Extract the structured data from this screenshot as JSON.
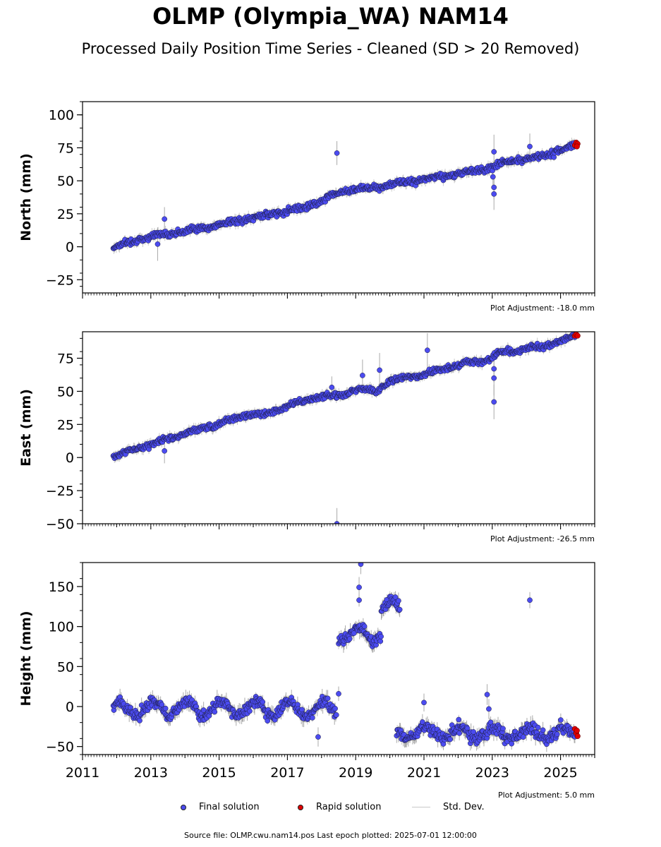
{
  "header": {
    "title": "OLMP (Olympia_WA) NAM14",
    "subtitle": "Processed Daily Position Time Series - Cleaned (SD > 20 Removed)"
  },
  "legend": {
    "final_label": "Final solution",
    "rapid_label": "Rapid solution",
    "std_label": "Std. Dev."
  },
  "footer": {
    "text": "Source file: OLMP.cwu.nam14.pos  Last epoch plotted: 2025-07-01 12:00:00"
  },
  "colors": {
    "final": "#4b4bf0",
    "rapid": "#e00000",
    "std": "#c8c8c8",
    "edge": "#1a1a3a"
  },
  "chart_data": [
    {
      "type": "scatter",
      "ylabel": "North (mm)",
      "plot_adjustment": "Plot Adjustment: -18.0 mm",
      "xlim": [
        2011,
        2026
      ],
      "ylim": [
        -35,
        110
      ],
      "yticks": [
        -25,
        0,
        25,
        50,
        75,
        100
      ],
      "show_xticklabels": false,
      "trend": [
        [
          2011.9,
          0
        ],
        [
          2013.0,
          8
        ],
        [
          2014.5,
          14
        ],
        [
          2016.0,
          22
        ],
        [
          2017.5,
          30
        ],
        [
          2018.0,
          35
        ],
        [
          2018.6,
          42
        ],
        [
          2019.5,
          45
        ],
        [
          2021.0,
          51
        ],
        [
          2023.0,
          60
        ],
        [
          2023.2,
          63
        ],
        [
          2024.5,
          69
        ],
        [
          2025.45,
          77
        ]
      ],
      "noise": 2.0,
      "outliers": [
        [
          2013.4,
          21
        ],
        [
          2013.2,
          2
        ],
        [
          2018.45,
          71
        ],
        [
          2023.05,
          72
        ],
        [
          2023.02,
          53
        ],
        [
          2023.05,
          45
        ],
        [
          2023.05,
          40
        ],
        [
          2024.1,
          76
        ]
      ],
      "rapid": [
        [
          2025.42,
          77
        ],
        [
          2025.46,
          79
        ],
        [
          2025.5,
          78
        ],
        [
          2025.48,
          76
        ]
      ]
    },
    {
      "type": "scatter",
      "ylabel": "East (mm)",
      "plot_adjustment": "Plot Adjustment: -26.5 mm",
      "xlim": [
        2011,
        2026
      ],
      "ylim": [
        -50,
        95
      ],
      "yticks": [
        -50,
        -25,
        0,
        25,
        50,
        75
      ],
      "show_xticklabels": false,
      "trend": [
        [
          2011.9,
          1
        ],
        [
          2013.0,
          10
        ],
        [
          2014.5,
          22
        ],
        [
          2015.9,
          33
        ],
        [
          2016.3,
          32
        ],
        [
          2017.0,
          39
        ],
        [
          2017.9,
          46
        ],
        [
          2018.6,
          47
        ],
        [
          2019.1,
          52
        ],
        [
          2019.6,
          50
        ],
        [
          2020.0,
          58
        ],
        [
          2021.0,
          63
        ],
        [
          2022.0,
          70
        ],
        [
          2022.9,
          74
        ],
        [
          2023.2,
          79
        ],
        [
          2024.5,
          84
        ],
        [
          2025.45,
          92
        ]
      ],
      "noise": 1.8,
      "outliers": [
        [
          2013.4,
          5
        ],
        [
          2018.3,
          53
        ],
        [
          2018.45,
          -50
        ],
        [
          2019.2,
          62
        ],
        [
          2019.7,
          66
        ],
        [
          2021.1,
          81
        ],
        [
          2023.05,
          60
        ],
        [
          2023.05,
          42
        ],
        [
          2023.05,
          67
        ]
      ],
      "rapid": [
        [
          2025.42,
          92
        ],
        [
          2025.46,
          93
        ],
        [
          2025.5,
          92
        ]
      ]
    },
    {
      "type": "scatter",
      "ylabel": "Height (mm)",
      "plot_adjustment": "Plot Adjustment: 5.0 mm",
      "xlim": [
        2011,
        2026
      ],
      "ylim": [
        -60,
        180
      ],
      "yticks": [
        -50,
        0,
        50,
        100,
        150
      ],
      "xticks": [
        2011,
        2013,
        2015,
        2017,
        2019,
        2021,
        2023,
        2025
      ],
      "show_xticklabels": true,
      "segments": [
        {
          "x0": 2011.9,
          "x1": 2018.45,
          "base": -3,
          "amp": 9,
          "noise": 6
        },
        {
          "x0": 2018.5,
          "x1": 2019.75,
          "base": 90,
          "amp": 8,
          "noise": 6
        },
        {
          "x0": 2019.75,
          "x1": 2020.3,
          "base": 125,
          "amp": 6,
          "noise": 6
        },
        {
          "x0": 2020.2,
          "x1": 2025.45,
          "base": -33,
          "amp": 7,
          "noise": 7
        }
      ],
      "outliers": [
        [
          2018.5,
          16
        ],
        [
          2019.15,
          178
        ],
        [
          2019.1,
          149
        ],
        [
          2019.1,
          133
        ],
        [
          2021.0,
          5
        ],
        [
          2022.85,
          15
        ],
        [
          2022.9,
          -3
        ],
        [
          2024.1,
          133
        ],
        [
          2017.9,
          -38
        ]
      ],
      "rapid": [
        [
          2025.42,
          -28
        ],
        [
          2025.46,
          -33
        ],
        [
          2025.5,
          -37
        ],
        [
          2025.48,
          -30
        ]
      ]
    }
  ]
}
